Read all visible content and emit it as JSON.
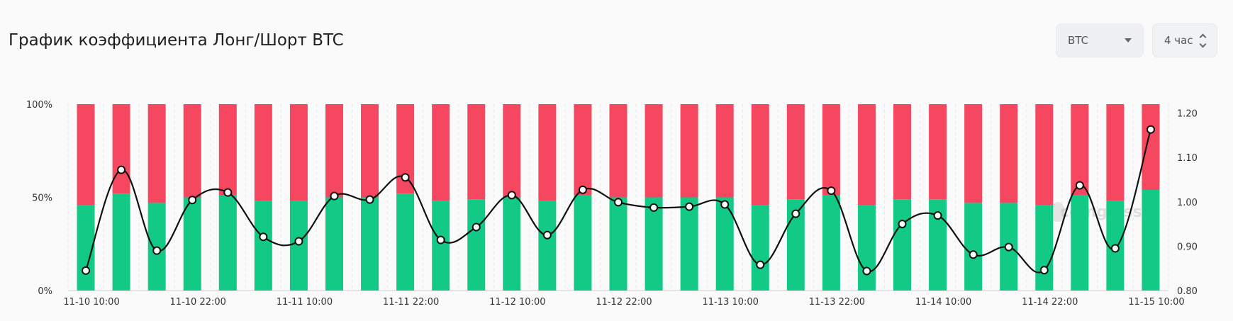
{
  "header": {
    "title": "График коэффициента Лонг/Шорт BTC",
    "coin_select": "BTC",
    "interval_select": "4 час"
  },
  "watermark": "coinglass",
  "colors": {
    "long": "#12c985",
    "short": "#f5475f",
    "line": "#111111"
  },
  "chart_data": {
    "type": "bar",
    "stacked_percent": true,
    "x": [
      "11-10 10:00",
      "11-10 14:00",
      "11-10 18:00",
      "11-10 22:00",
      "11-11 02:00",
      "11-11 06:00",
      "11-11 10:00",
      "11-11 14:00",
      "11-11 18:00",
      "11-11 22:00",
      "11-12 02:00",
      "11-12 06:00",
      "11-12 10:00",
      "11-12 14:00",
      "11-12 18:00",
      "11-12 22:00",
      "11-13 02:00",
      "11-13 06:00",
      "11-13 10:00",
      "11-13 14:00",
      "11-13 18:00",
      "11-13 22:00",
      "11-14 02:00",
      "11-14 06:00",
      "11-14 10:00",
      "11-14 14:00",
      "11-14 18:00",
      "11-14 22:00",
      "11-15 02:00",
      "11-15 06:00",
      "11-15 10:00"
    ],
    "x_tick_labels": [
      "11-10 10:00",
      "11-10 22:00",
      "11-11 10:00",
      "11-11 22:00",
      "11-12 10:00",
      "11-12 22:00",
      "11-13 10:00",
      "11-13 22:00",
      "11-14 10:00",
      "11-14 22:00",
      "11-15 10:00"
    ],
    "series": [
      {
        "axis": "left",
        "values": [
          46,
          52,
          47,
          50,
          51,
          48,
          48,
          50,
          50,
          52,
          48,
          49,
          50,
          48,
          51,
          50,
          50,
          50,
          50,
          46,
          49,
          51,
          46,
          49,
          49,
          47,
          47,
          46,
          51,
          48,
          54
        ]
      },
      {
        "axis": "left",
        "values": [
          54,
          48,
          53,
          50,
          49,
          52,
          52,
          50,
          50,
          48,
          52,
          51,
          50,
          52,
          49,
          50,
          50,
          50,
          50,
          54,
          51,
          49,
          54,
          51,
          51,
          53,
          53,
          54,
          49,
          52,
          46
        ]
      },
      {
        "axis": "right",
        "type": "line",
        "values": [
          0.845,
          1.072,
          0.89,
          1.004,
          1.021,
          0.921,
          0.911,
          1.013,
          1.005,
          1.055,
          0.914,
          0.943,
          1.015,
          0.925,
          1.027,
          0.999,
          0.987,
          0.989,
          0.994,
          0.858,
          0.973,
          1.025,
          0.844,
          0.95,
          0.969,
          0.881,
          0.898,
          0.846,
          1.037,
          0.895,
          1.163
        ]
      }
    ],
    "left_axis": {
      "ticks": [
        "0%",
        "50%",
        "100%"
      ],
      "ylim": [
        0,
        100
      ]
    },
    "right_axis": {
      "ticks": [
        "0.80",
        "0.90",
        "1.00",
        "1.10",
        "1.20"
      ],
      "ylim": [
        0.8,
        1.22
      ]
    },
    "grid": "vertical dashed",
    "legend": "none"
  }
}
